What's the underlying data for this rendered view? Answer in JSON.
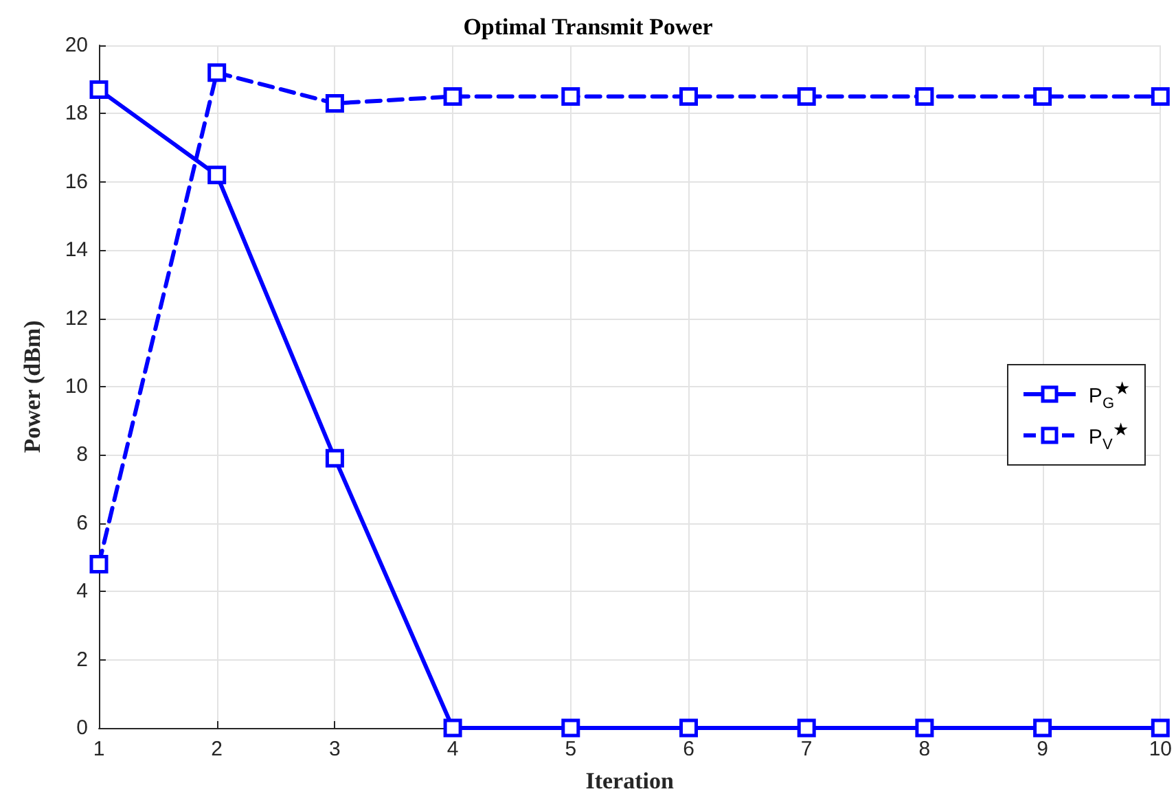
{
  "chart_data": {
    "type": "line",
    "title": "Optimal Transmit Power",
    "xlabel": "Iteration",
    "ylabel": "Power (dBm)",
    "x": [
      1,
      2,
      3,
      4,
      5,
      6,
      7,
      8,
      9,
      10
    ],
    "series": [
      {
        "name": "P$_{G}$$^{★}$",
        "color": "#0000ff",
        "line_style": "solid",
        "values": [
          18.7,
          16.2,
          7.9,
          0,
          0,
          0,
          0,
          0,
          0,
          0
        ]
      },
      {
        "name": "P$_{V}$$^{★}$",
        "color": "#0000ff",
        "line_style": "dashed",
        "values": [
          4.8,
          19.2,
          18.3,
          18.5,
          18.5,
          18.5,
          18.5,
          18.5,
          18.5,
          18.5
        ]
      }
    ],
    "xlim": [
      1,
      10
    ],
    "xticks": [
      1,
      2,
      3,
      4,
      5,
      6,
      7,
      8,
      9,
      10
    ],
    "ylim": [
      0,
      20
    ],
    "yticks": [
      0,
      2,
      4,
      6,
      8,
      10,
      12,
      14,
      16,
      18,
      20
    ],
    "grid": true,
    "legend": "right",
    "marker": "square"
  }
}
